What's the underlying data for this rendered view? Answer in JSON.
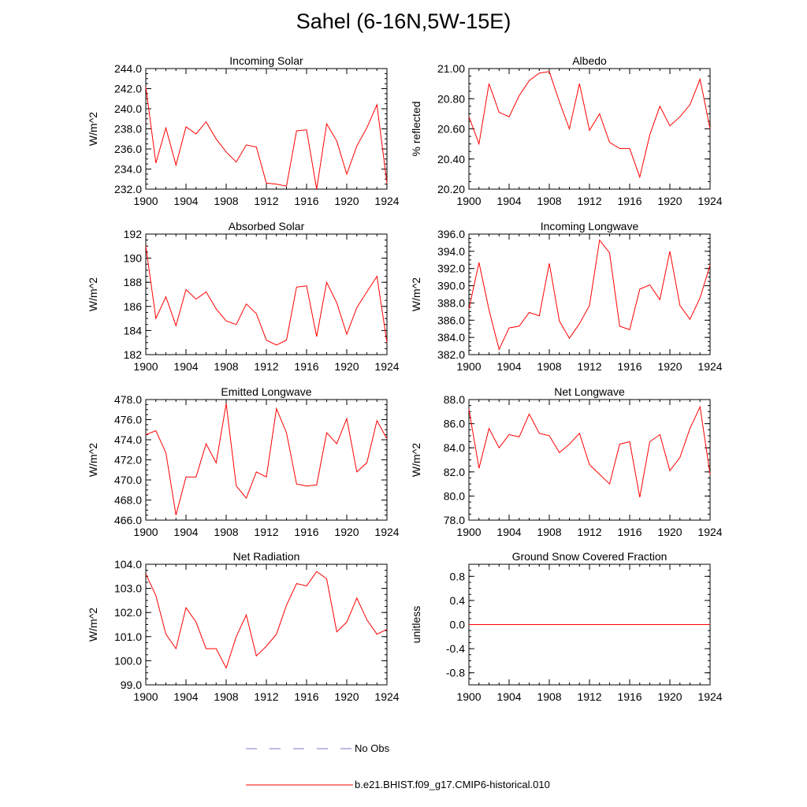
{
  "title": "Sahel (6-16N,5W-15E)",
  "colors": {
    "model_line": "#ff0000",
    "obs_line": "#7a7ac8",
    "axis": "#000000"
  },
  "legend": [
    {
      "label": "No Obs",
      "style": "dashed",
      "color": "#7a7ac8"
    },
    {
      "label": "b.e21.BHIST.f09_g17.CMIP6-historical.010",
      "style": "solid",
      "color": "#ff0000"
    }
  ],
  "chart_data": [
    {
      "type": "line",
      "title": "Incoming Solar",
      "ylabel": "W/m^2",
      "xlim": [
        1900,
        1924
      ],
      "xticks": [
        1900,
        1904,
        1908,
        1912,
        1916,
        1920,
        1924
      ],
      "ylim": [
        232,
        244
      ],
      "yticks": [
        232,
        234,
        236,
        238,
        240,
        242,
        244
      ],
      "yticklabels": [
        "232.0",
        "234.0",
        "236.0",
        "238.0",
        "240.0",
        "242.0",
        "244.0"
      ],
      "series": [
        {
          "x": [
            1900,
            1901,
            1902,
            1903,
            1904,
            1905,
            1906,
            1907,
            1908,
            1909,
            1910,
            1911,
            1912,
            1913,
            1914,
            1915,
            1916,
            1917,
            1918,
            1919,
            1920,
            1921,
            1922,
            1923,
            1924
          ],
          "values": [
            242.2,
            234.6,
            238.1,
            234.4,
            238.2,
            237.5,
            238.7,
            237.0,
            235.7,
            234.7,
            236.4,
            236.2,
            232.6,
            232.5,
            232.3,
            237.8,
            237.9,
            232.0,
            238.5,
            236.8,
            233.5,
            236.3,
            238.1,
            240.4,
            232.6
          ]
        }
      ]
    },
    {
      "type": "line",
      "title": "Albedo",
      "ylabel": "% reflected",
      "xlim": [
        1900,
        1924
      ],
      "xticks": [
        1900,
        1904,
        1908,
        1912,
        1916,
        1920,
        1924
      ],
      "ylim": [
        20.2,
        21.0
      ],
      "yticks": [
        20.2,
        20.4,
        20.6,
        20.8,
        21.0
      ],
      "yticklabels": [
        "20.20",
        "20.40",
        "20.60",
        "20.80",
        "21.00"
      ],
      "series": [
        {
          "x": [
            1900,
            1901,
            1902,
            1903,
            1904,
            1905,
            1906,
            1907,
            1908,
            1909,
            1910,
            1911,
            1912,
            1913,
            1914,
            1915,
            1916,
            1917,
            1918,
            1919,
            1920,
            1921,
            1922,
            1923,
            1924
          ],
          "values": [
            20.68,
            20.5,
            20.9,
            20.71,
            20.68,
            20.82,
            20.92,
            20.97,
            20.98,
            20.78,
            20.6,
            20.9,
            20.59,
            20.7,
            20.51,
            20.47,
            20.47,
            20.28,
            20.56,
            20.75,
            20.62,
            20.68,
            20.76,
            20.93,
            20.6
          ]
        }
      ]
    },
    {
      "type": "line",
      "title": "Absorbed Solar",
      "ylabel": "W/m^2",
      "xlim": [
        1900,
        1924
      ],
      "xticks": [
        1900,
        1904,
        1908,
        1912,
        1916,
        1920,
        1924
      ],
      "ylim": [
        182,
        192
      ],
      "yticks": [
        182,
        184,
        186,
        188,
        190,
        192
      ],
      "yticklabels": [
        "182",
        "184",
        "186",
        "188",
        "190",
        "192"
      ],
      "series": [
        {
          "x": [
            1900,
            1901,
            1902,
            1903,
            1904,
            1905,
            1906,
            1907,
            1908,
            1909,
            1910,
            1911,
            1912,
            1913,
            1914,
            1915,
            1916,
            1917,
            1918,
            1919,
            1920,
            1921,
            1922,
            1923,
            1924
          ],
          "values": [
            191.0,
            185.0,
            186.8,
            184.4,
            187.4,
            186.6,
            187.2,
            185.8,
            184.8,
            184.5,
            186.2,
            185.4,
            183.2,
            182.8,
            183.2,
            187.6,
            187.7,
            183.5,
            188.0,
            186.3,
            183.7,
            185.9,
            187.2,
            188.5,
            183.0
          ]
        }
      ]
    },
    {
      "type": "line",
      "title": "Incoming Longwave",
      "ylabel": "W/m^2",
      "xlim": [
        1900,
        1924
      ],
      "xticks": [
        1900,
        1904,
        1908,
        1912,
        1916,
        1920,
        1924
      ],
      "ylim": [
        382,
        396
      ],
      "yticks": [
        382,
        384,
        386,
        388,
        390,
        392,
        394,
        396
      ],
      "yticklabels": [
        "382.0",
        "384.0",
        "386.0",
        "388.0",
        "390.0",
        "392.0",
        "394.0",
        "396.0"
      ],
      "series": [
        {
          "x": [
            1900,
            1901,
            1902,
            1903,
            1904,
            1905,
            1906,
            1907,
            1908,
            1909,
            1910,
            1911,
            1912,
            1913,
            1914,
            1915,
            1916,
            1917,
            1918,
            1919,
            1920,
            1921,
            1922,
            1923,
            1924
          ],
          "values": [
            387.3,
            392.7,
            387.2,
            382.6,
            385.1,
            385.3,
            386.9,
            386.5,
            392.6,
            385.9,
            383.9,
            385.6,
            387.7,
            395.3,
            393.8,
            385.3,
            384.9,
            389.6,
            390.1,
            388.4,
            394.0,
            387.7,
            386.1,
            388.6,
            392.4
          ]
        }
      ]
    },
    {
      "type": "line",
      "title": "Emitted Longwave",
      "ylabel": "W/m^2",
      "xlim": [
        1900,
        1924
      ],
      "xticks": [
        1900,
        1904,
        1908,
        1912,
        1916,
        1920,
        1924
      ],
      "ylim": [
        466,
        478
      ],
      "yticks": [
        466,
        468,
        470,
        472,
        474,
        476,
        478
      ],
      "yticklabels": [
        "466.0",
        "468.0",
        "470.0",
        "472.0",
        "474.0",
        "476.0",
        "478.0"
      ],
      "series": [
        {
          "x": [
            1900,
            1901,
            1902,
            1903,
            1904,
            1905,
            1906,
            1907,
            1908,
            1909,
            1910,
            1911,
            1912,
            1913,
            1914,
            1915,
            1916,
            1917,
            1918,
            1919,
            1920,
            1921,
            1922,
            1923,
            1924
          ],
          "values": [
            474.5,
            474.9,
            472.7,
            466.5,
            470.3,
            470.3,
            473.6,
            471.7,
            477.6,
            469.4,
            468.2,
            470.8,
            470.3,
            477.1,
            474.7,
            469.6,
            469.4,
            469.5,
            474.7,
            473.6,
            476.1,
            470.8,
            471.7,
            475.9,
            474.1
          ]
        }
      ]
    },
    {
      "type": "line",
      "title": "Net Longwave",
      "ylabel": "W/m^2",
      "xlim": [
        1900,
        1924
      ],
      "xticks": [
        1900,
        1904,
        1908,
        1912,
        1916,
        1920,
        1924
      ],
      "ylim": [
        78,
        88
      ],
      "yticks": [
        78,
        80,
        82,
        84,
        86,
        88
      ],
      "yticklabels": [
        "78.0",
        "80.0",
        "82.0",
        "84.0",
        "86.0",
        "88.0"
      ],
      "series": [
        {
          "x": [
            1900,
            1901,
            1902,
            1903,
            1904,
            1905,
            1906,
            1907,
            1908,
            1909,
            1910,
            1911,
            1912,
            1913,
            1914,
            1915,
            1916,
            1917,
            1918,
            1919,
            1920,
            1921,
            1922,
            1923,
            1924
          ],
          "values": [
            87.2,
            82.3,
            85.6,
            84.0,
            85.1,
            84.9,
            86.8,
            85.2,
            85.0,
            83.6,
            84.3,
            85.2,
            82.6,
            81.8,
            81.0,
            84.3,
            84.5,
            79.9,
            84.5,
            85.1,
            82.1,
            83.2,
            85.6,
            87.4,
            81.8
          ]
        }
      ]
    },
    {
      "type": "line",
      "title": "Net Radiation",
      "ylabel": "W/m^2",
      "xlim": [
        1900,
        1924
      ],
      "xticks": [
        1900,
        1904,
        1908,
        1912,
        1916,
        1920,
        1924
      ],
      "ylim": [
        99,
        104
      ],
      "yticks": [
        99,
        100,
        101,
        102,
        103,
        104
      ],
      "yticklabels": [
        "99.0",
        "100.0",
        "101.0",
        "102.0",
        "103.0",
        "104.0"
      ],
      "series": [
        {
          "x": [
            1900,
            1901,
            1902,
            1903,
            1904,
            1905,
            1906,
            1907,
            1908,
            1909,
            1910,
            1911,
            1912,
            1913,
            1914,
            1915,
            1916,
            1917,
            1918,
            1919,
            1920,
            1921,
            1922,
            1923,
            1924
          ],
          "values": [
            103.6,
            102.7,
            101.1,
            100.5,
            102.2,
            101.6,
            100.5,
            100.5,
            99.7,
            101.0,
            101.9,
            100.2,
            100.6,
            101.1,
            102.3,
            103.2,
            103.1,
            103.7,
            103.4,
            101.2,
            101.6,
            102.6,
            101.7,
            101.1,
            101.3
          ]
        }
      ]
    },
    {
      "type": "line",
      "title": "Ground Snow Covered Fraction",
      "ylabel": "unitless",
      "xlim": [
        1900,
        1924
      ],
      "xticks": [
        1900,
        1904,
        1908,
        1912,
        1916,
        1920,
        1924
      ],
      "ylim": [
        -1.0,
        1.0
      ],
      "yticks": [
        -0.8,
        -0.4,
        0.0,
        0.4,
        0.8
      ],
      "yticklabels": [
        "-0.8",
        "-0.4",
        "0.0",
        "0.4",
        "0.8"
      ],
      "series": [
        {
          "x": [
            1900,
            1924
          ],
          "values": [
            0.0,
            0.0
          ]
        }
      ]
    }
  ]
}
